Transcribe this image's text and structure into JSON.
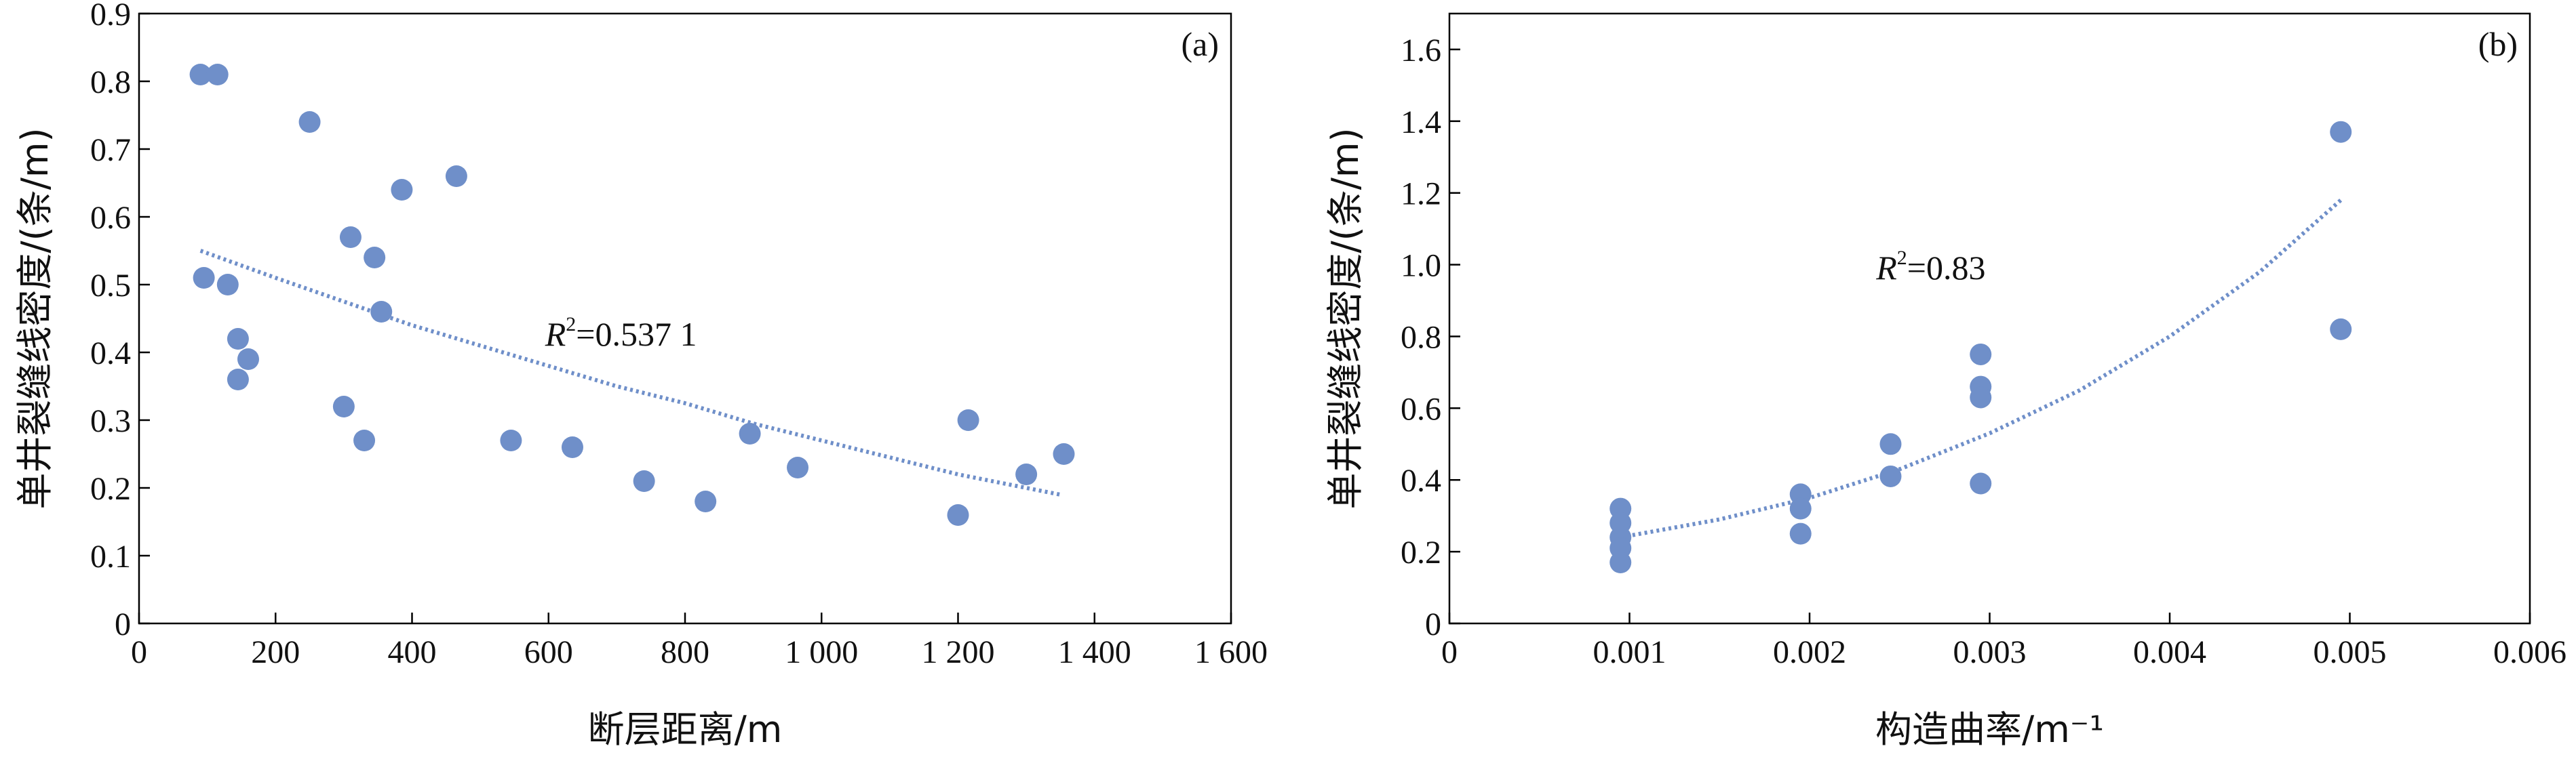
{
  "chart_data": [
    {
      "type": "scatter",
      "panel_label": "(a)",
      "xlabel": "断层距离/m",
      "ylabel": "单井裂缝线密度/(条/m)",
      "xlim": [
        0,
        1600
      ],
      "ylim": [
        0,
        0.9
      ],
      "xticks": [
        0,
        200,
        400,
        600,
        800,
        1000,
        1200,
        1400,
        1600
      ],
      "xtick_labels": [
        "0",
        "200",
        "400",
        "600",
        "800",
        "1 000",
        "1 200",
        "1 400",
        "1 600"
      ],
      "yticks": [
        0,
        0.1,
        0.2,
        0.3,
        0.4,
        0.5,
        0.6,
        0.7,
        0.8,
        0.9
      ],
      "ytick_labels": [
        "0",
        "0.1",
        "0.2",
        "0.3",
        "0.4",
        "0.5",
        "0.6",
        "0.7",
        "0.8",
        "0.9"
      ],
      "points": [
        {
          "x": 90,
          "y": 0.81
        },
        {
          "x": 115,
          "y": 0.81
        },
        {
          "x": 95,
          "y": 0.51
        },
        {
          "x": 130,
          "y": 0.5
        },
        {
          "x": 145,
          "y": 0.42
        },
        {
          "x": 160,
          "y": 0.39
        },
        {
          "x": 145,
          "y": 0.36
        },
        {
          "x": 250,
          "y": 0.74
        },
        {
          "x": 310,
          "y": 0.57
        },
        {
          "x": 345,
          "y": 0.54
        },
        {
          "x": 385,
          "y": 0.64
        },
        {
          "x": 465,
          "y": 0.66
        },
        {
          "x": 355,
          "y": 0.46
        },
        {
          "x": 300,
          "y": 0.32
        },
        {
          "x": 330,
          "y": 0.27
        },
        {
          "x": 545,
          "y": 0.27
        },
        {
          "x": 635,
          "y": 0.26
        },
        {
          "x": 740,
          "y": 0.21
        },
        {
          "x": 830,
          "y": 0.18
        },
        {
          "x": 895,
          "y": 0.28
        },
        {
          "x": 965,
          "y": 0.23
        },
        {
          "x": 1200,
          "y": 0.16
        },
        {
          "x": 1215,
          "y": 0.3
        },
        {
          "x": 1300,
          "y": 0.22
        },
        {
          "x": 1355,
          "y": 0.25
        }
      ],
      "trendline": {
        "x": [
          90,
          200,
          300,
          400,
          500,
          600,
          700,
          800,
          900,
          1000,
          1100,
          1200,
          1300,
          1350
        ],
        "y": [
          0.55,
          0.51,
          0.475,
          0.44,
          0.41,
          0.38,
          0.35,
          0.325,
          0.295,
          0.27,
          0.245,
          0.22,
          0.2,
          0.19
        ]
      },
      "r2_label": "=0.537 1",
      "r2_pos": {
        "x": 595,
        "y": 0.41
      },
      "grid": false
    },
    {
      "type": "scatter",
      "panel_label": "(b)",
      "xlabel": "构造曲率/m⁻¹",
      "ylabel": "单井裂缝线密度/(条/m)",
      "xlim": [
        0,
        0.006
      ],
      "ylim": [
        0,
        1.7
      ],
      "xticks": [
        0,
        0.001,
        0.002,
        0.003,
        0.004,
        0.005,
        0.006
      ],
      "xtick_labels": [
        "0",
        "0.001",
        "0.002",
        "0.003",
        "0.004",
        "0.005",
        "0.006"
      ],
      "yticks": [
        0,
        0.2,
        0.4,
        0.6,
        0.8,
        1.0,
        1.2,
        1.4,
        1.6
      ],
      "ytick_labels": [
        "0",
        "0.2",
        "0.4",
        "0.6",
        "0.8",
        "1.0",
        "1.2",
        "1.4",
        "1.6"
      ],
      "points": [
        {
          "x": 0.00095,
          "y": 0.32
        },
        {
          "x": 0.00095,
          "y": 0.28
        },
        {
          "x": 0.00095,
          "y": 0.24
        },
        {
          "x": 0.00095,
          "y": 0.21
        },
        {
          "x": 0.00095,
          "y": 0.17
        },
        {
          "x": 0.00195,
          "y": 0.36
        },
        {
          "x": 0.00195,
          "y": 0.32
        },
        {
          "x": 0.00195,
          "y": 0.25
        },
        {
          "x": 0.00245,
          "y": 0.5
        },
        {
          "x": 0.00245,
          "y": 0.41
        },
        {
          "x": 0.00295,
          "y": 0.75
        },
        {
          "x": 0.00295,
          "y": 0.66
        },
        {
          "x": 0.00295,
          "y": 0.63
        },
        {
          "x": 0.00295,
          "y": 0.39
        },
        {
          "x": 0.00495,
          "y": 1.37
        },
        {
          "x": 0.00495,
          "y": 0.82
        }
      ],
      "trendline": {
        "x": [
          0.00095,
          0.0015,
          0.002,
          0.0025,
          0.003,
          0.0035,
          0.004,
          0.0045,
          0.00495
        ],
        "y": [
          0.24,
          0.29,
          0.35,
          0.43,
          0.53,
          0.65,
          0.8,
          0.98,
          1.18
        ]
      },
      "r2_label": "=0.83",
      "r2_pos": {
        "x": 0.00237,
        "y": 0.96
      },
      "grid": false
    }
  ]
}
